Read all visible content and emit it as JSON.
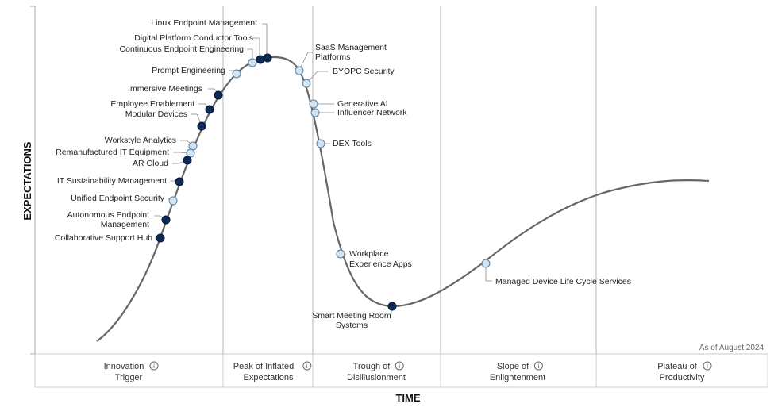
{
  "axes": {
    "y_title": "EXPECTATIONS",
    "x_title": "TIME"
  },
  "as_of": "As of August 2024",
  "colors": {
    "dark_dot": "#0d2a56",
    "light_dot": "#cfe3f3",
    "curve": "#666666",
    "grid": "#b5b5b5"
  },
  "phases": [
    {
      "line1": "Innovation",
      "line2": "Trigger",
      "icon": "info-icon"
    },
    {
      "line1": "Peak of Inflated",
      "line2": "Expectations",
      "icon": "info-icon"
    },
    {
      "line1": "Trough of",
      "line2": "Disillusionment",
      "icon": "info-icon"
    },
    {
      "line1": "Slope of",
      "line2": "Enlightenment",
      "icon": "info-icon"
    },
    {
      "line1": "Plateau of",
      "line2": "Productivity",
      "icon": "info-icon"
    }
  ],
  "technologies": [
    {
      "name": "Linux Endpoint Management",
      "dot": "dark"
    },
    {
      "name": "Digital Platform Conductor Tools",
      "dot": "dark"
    },
    {
      "name": "Continuous Endpoint Engineering",
      "dot": "light"
    },
    {
      "name": "Prompt Engineering",
      "dot": "light"
    },
    {
      "name": "Immersive Meetings",
      "dot": "dark"
    },
    {
      "name": "Employee Enablement",
      "dot": "dark"
    },
    {
      "name": "Modular Devices",
      "dot": "dark"
    },
    {
      "name": "Workstyle Analytics",
      "dot": "light"
    },
    {
      "name": "Remanufactured IT Equipment",
      "dot": "light"
    },
    {
      "name": "AR Cloud",
      "dot": "dark"
    },
    {
      "name": "IT Sustainability Management",
      "dot": "dark"
    },
    {
      "name": "Unified Endpoint Security",
      "dot": "light"
    },
    {
      "name": "Autonomous Endpoint Management",
      "line1": "Autonomous Endpoint",
      "line2": "Management",
      "dot": "dark"
    },
    {
      "name": "Collaborative Support Hub",
      "dot": "dark"
    },
    {
      "name": "SaaS Management Platforms",
      "line1": "SaaS Management",
      "line2": "Platforms",
      "dot": "light"
    },
    {
      "name": "BYOPC Security",
      "dot": "light"
    },
    {
      "name": "Generative AI",
      "dot": "light"
    },
    {
      "name": "Influencer Network",
      "dot": "light"
    },
    {
      "name": "DEX Tools",
      "dot": "light"
    },
    {
      "name": "Workplace Experience Apps",
      "line1": "Workplace",
      "line2": "Experience Apps",
      "dot": "light"
    },
    {
      "name": "Smart Meeting Room Systems",
      "line1": "Smart Meeting Room",
      "line2": "Systems",
      "dot": "dark"
    },
    {
      "name": "Managed Device Life Cycle Services",
      "dot": "light"
    }
  ]
}
